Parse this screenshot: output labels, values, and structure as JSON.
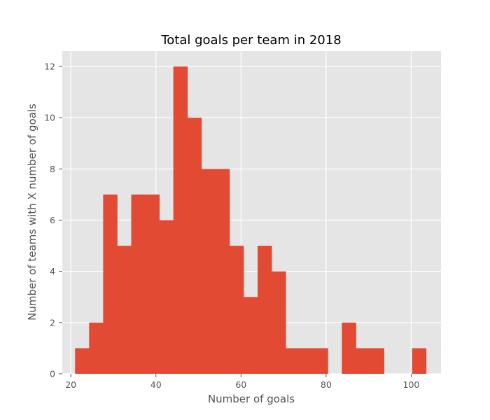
{
  "chart_data": {
    "type": "histogram",
    "title": "Total goals per team in 2018",
    "xlabel": "Number of goals",
    "ylabel": "Number of teams with X number of goals",
    "xlim": [
      18,
      107
    ],
    "ylim": [
      0,
      12.6
    ],
    "x_ticks": [
      20,
      40,
      60,
      80,
      100
    ],
    "y_ticks": [
      0,
      2,
      4,
      6,
      8,
      10,
      12
    ],
    "grid": true,
    "bar_color": "#E24A33",
    "background_color": "#E5E5E5",
    "bin_edges": [
      21,
      24.3,
      27.6,
      30.9,
      34.2,
      37.5,
      40.8,
      44.1,
      47.4,
      50.7,
      54.0,
      57.3,
      60.6,
      63.9,
      67.2,
      70.5,
      73.8,
      77.1,
      80.4,
      83.7,
      87.0,
      90.3,
      93.6,
      96.9,
      100.2,
      103.5
    ],
    "counts": [
      1,
      2,
      7,
      5,
      7,
      7,
      6,
      12,
      10,
      8,
      8,
      5,
      3,
      5,
      4,
      1,
      1,
      1,
      0,
      2,
      1,
      1,
      0,
      0,
      1
    ]
  }
}
